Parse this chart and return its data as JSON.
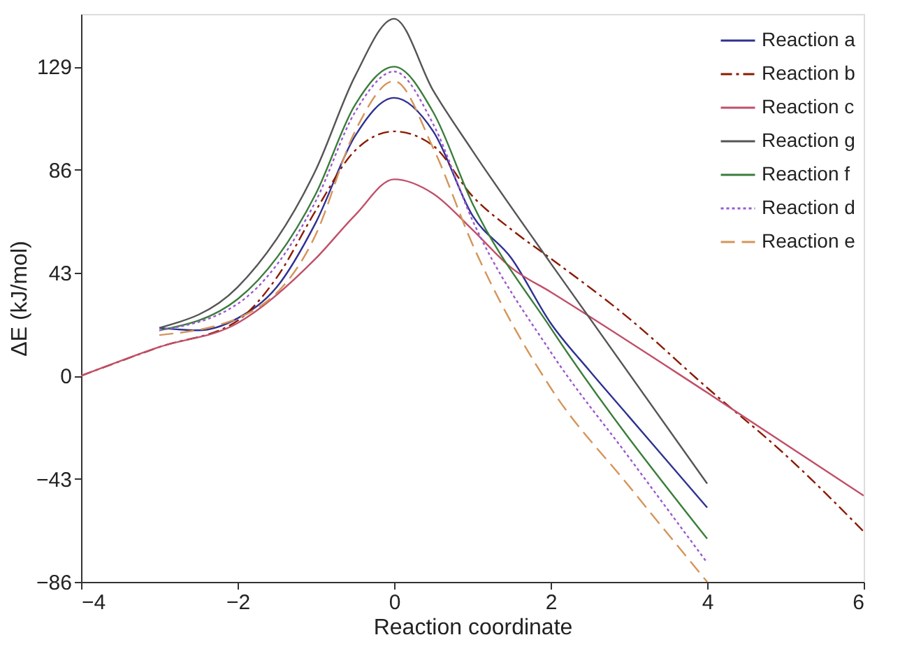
{
  "chart_data": {
    "type": "line",
    "xlabel": "Reaction coordinate",
    "ylabel": "ΔE (kJ/mol)",
    "xlim": [
      -4,
      6
    ],
    "xticks": [
      -4,
      -2,
      0,
      2,
      4,
      6
    ],
    "ylim": [
      -86,
      151
    ],
    "yticks": [
      -86,
      -43,
      0,
      43,
      86,
      129
    ],
    "grid": false,
    "legend": "top right",
    "marker": "none",
    "series": [
      {
        "name": "Reaction a",
        "color": "#2e3192",
        "line_style": "solid",
        "x": [
          -3,
          -2.5,
          -2,
          -1.5,
          -1,
          -0.5,
          0,
          0.5,
          1,
          1.5,
          2,
          2.5,
          3,
          4
        ],
        "values": [
          20,
          19,
          24,
          37,
          64,
          100,
          116,
          102,
          67,
          49,
          22,
          2,
          -17,
          -55
        ]
      },
      {
        "name": "Reaction b",
        "color": "#8b1a00",
        "line_style": "dashdot",
        "x": [
          -4,
          -3,
          -2,
          -1.5,
          -1,
          -0.5,
          0,
          0.5,
          1,
          1.5,
          2,
          3,
          4,
          5,
          6
        ],
        "values": [
          0,
          12,
          23,
          41,
          69,
          94,
          102,
          96,
          75,
          61,
          49,
          24,
          -5,
          -33,
          -65
        ]
      },
      {
        "name": "Reaction c",
        "color": "#c0506a",
        "line_style": "solid",
        "x": [
          -4,
          -3,
          -2,
          -1,
          -0.5,
          0,
          0.5,
          1,
          1.5,
          2,
          4,
          6
        ],
        "values": [
          0,
          12,
          22,
          49,
          67,
          82,
          76,
          61,
          45,
          35,
          -7,
          -50
        ]
      },
      {
        "name": "Reaction g",
        "color": "#555555",
        "line_style": "solid",
        "x": [
          -3,
          -2,
          -1,
          -0.5,
          0,
          0.5,
          1,
          2,
          4
        ],
        "values": [
          20,
          37,
          86,
          125,
          149,
          119,
          94,
          47,
          -45
        ]
      },
      {
        "name": "Reaction f",
        "color": "#3a7d3a",
        "line_style": "solid",
        "x": [
          -3,
          -2,
          -1,
          -0.5,
          0,
          0.5,
          1,
          2,
          4
        ],
        "values": [
          19,
          32,
          76,
          113,
          129,
          110,
          72,
          20,
          -68
        ]
      },
      {
        "name": "Reaction d",
        "color": "#9b59d0",
        "line_style": "dotted",
        "x": [
          -3,
          -2,
          -1,
          -0.5,
          0,
          0.5,
          1,
          2,
          3,
          4
        ],
        "values": [
          19,
          30,
          73,
          110,
          127,
          105,
          65,
          10,
          -34,
          -78
        ]
      },
      {
        "name": "Reaction e",
        "color": "#d4955a",
        "line_style": "dashed",
        "x": [
          -3,
          -2,
          -1,
          -0.5,
          0,
          0.5,
          1,
          2,
          3,
          4
        ],
        "values": [
          17,
          24,
          59,
          102,
          123,
          95,
          55,
          -5,
          -46,
          -86
        ]
      }
    ]
  }
}
